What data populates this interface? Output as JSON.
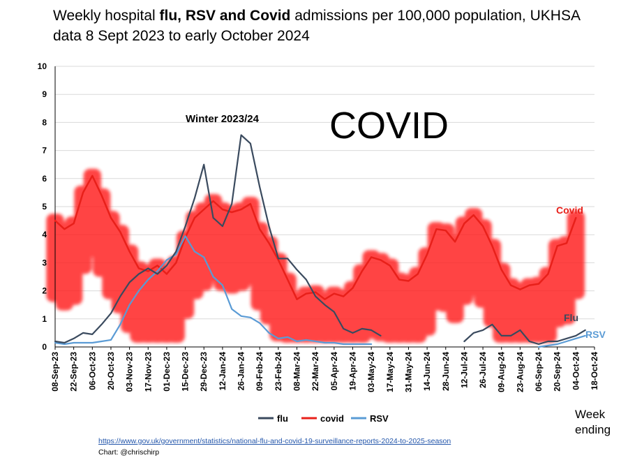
{
  "title": {
    "part1": "Weekly hospital ",
    "bold": "flu, RSV and Covid",
    "part2": " admissions per 100,000 population, UKHSA data 8 Sept 2023 to early October 2024"
  },
  "overlay": {
    "covid_big": "COVID",
    "winter": "Winter 2023/24"
  },
  "source_url": "https://www.gov.uk/government/statistics/national-flu-and-covid-19-surveillance-reports-2024-to-2025-season",
  "credit": "Chart: @chrischirp",
  "week_ending": "Week ending",
  "colors": {
    "flu": "#3a4a5e",
    "covid": "#e8201a",
    "rsv": "#5a9bd5",
    "blob": "#ff1a1a",
    "grid": "#d9d9d9"
  },
  "chart_data": {
    "type": "line",
    "title": "Weekly hospital flu, RSV and Covid admissions per 100,000 population, UKHSA data 8 Sept 2023 to early October 2024",
    "xlabel": "Week ending",
    "ylabel": "",
    "ylim": [
      0,
      10
    ],
    "yticks": [
      0,
      1,
      2,
      3,
      4,
      5,
      6,
      7,
      8,
      9,
      10
    ],
    "grid": true,
    "x_tick_labels": [
      "08-Sep-23",
      "22-Sep-23",
      "06-Oct-23",
      "20-Oct-23",
      "03-Nov-23",
      "17-Nov-23",
      "01-Dec-23",
      "15-Dec-23",
      "29-Dec-23",
      "12-Jan-24",
      "26-Jan-24",
      "09-Feb-24",
      "23-Feb-24",
      "08-Mar-24",
      "22-Mar-24",
      "05-Apr-24",
      "19-Apr-24",
      "03-May-24",
      "17-May-24",
      "31-May-24",
      "14-Jun-24",
      "28-Jun-24",
      "12-Jul-24",
      "26-Jul-24",
      "09-Aug-24",
      "23-Aug-24",
      "06-Sep-24",
      "20-Sep-24",
      "04-Oct-24",
      "18-Oct-24"
    ],
    "x_week_count": 59,
    "legend": [
      "flu",
      "covid",
      "RSV"
    ],
    "legend_placement": "bottom",
    "end_labels": {
      "covid": "Covid",
      "flu": "Flu",
      "rsv": "RSV"
    },
    "series": [
      {
        "name": "covid",
        "values": [
          4.5,
          4.2,
          4.4,
          5.5,
          6.1,
          5.4,
          4.6,
          4.1,
          3.4,
          2.8,
          2.7,
          2.9,
          2.6,
          3.0,
          3.9,
          4.6,
          4.9,
          5.2,
          4.9,
          4.8,
          4.9,
          5.1,
          4.2,
          3.7,
          3.1,
          2.4,
          1.7,
          1.9,
          1.95,
          1.7,
          1.9,
          1.8,
          2.1,
          2.7,
          3.2,
          3.1,
          2.9,
          2.4,
          2.35,
          2.6,
          3.3,
          4.2,
          4.15,
          3.75,
          4.4,
          4.7,
          4.3,
          3.6,
          2.75,
          2.2,
          2.05,
          2.2,
          2.25,
          2.6,
          3.6,
          3.7,
          4.6
        ]
      },
      {
        "name": "flu",
        "values": [
          0.2,
          0.15,
          0.3,
          0.5,
          0.45,
          0.8,
          1.2,
          1.8,
          2.3,
          2.6,
          2.8,
          2.6,
          2.9,
          3.4,
          4.3,
          5.3,
          6.5,
          4.6,
          4.3,
          5.1,
          7.55,
          7.25,
          5.7,
          4.3,
          3.15,
          3.15,
          2.75,
          2.4,
          1.8,
          1.5,
          1.25,
          0.65,
          0.5,
          0.65,
          0.6,
          0.4,
          null,
          null,
          null,
          null,
          null,
          null,
          null,
          null,
          0.2,
          0.5,
          0.6,
          0.8,
          0.4,
          0.4,
          0.6,
          0.2,
          0.1,
          0.2,
          0.2,
          0.3,
          0.4,
          0.6
        ]
      },
      {
        "name": "RSV",
        "values": [
          0.15,
          0.1,
          0.15,
          0.15,
          0.15,
          0.2,
          0.25,
          0.8,
          1.5,
          2.0,
          2.4,
          2.7,
          3.1,
          3.3,
          3.95,
          3.4,
          3.2,
          2.5,
          2.2,
          1.35,
          1.1,
          1.05,
          0.85,
          0.5,
          0.3,
          0.35,
          0.2,
          0.25,
          0.2,
          0.15,
          0.15,
          0.1,
          0.1,
          0.1,
          0.1,
          null,
          null,
          null,
          null,
          null,
          null,
          null,
          null,
          null,
          null,
          null,
          null,
          null,
          null,
          null,
          null,
          null,
          0.0,
          0.05,
          0.1,
          0.2,
          0.3,
          0.4
        ]
      }
    ]
  }
}
